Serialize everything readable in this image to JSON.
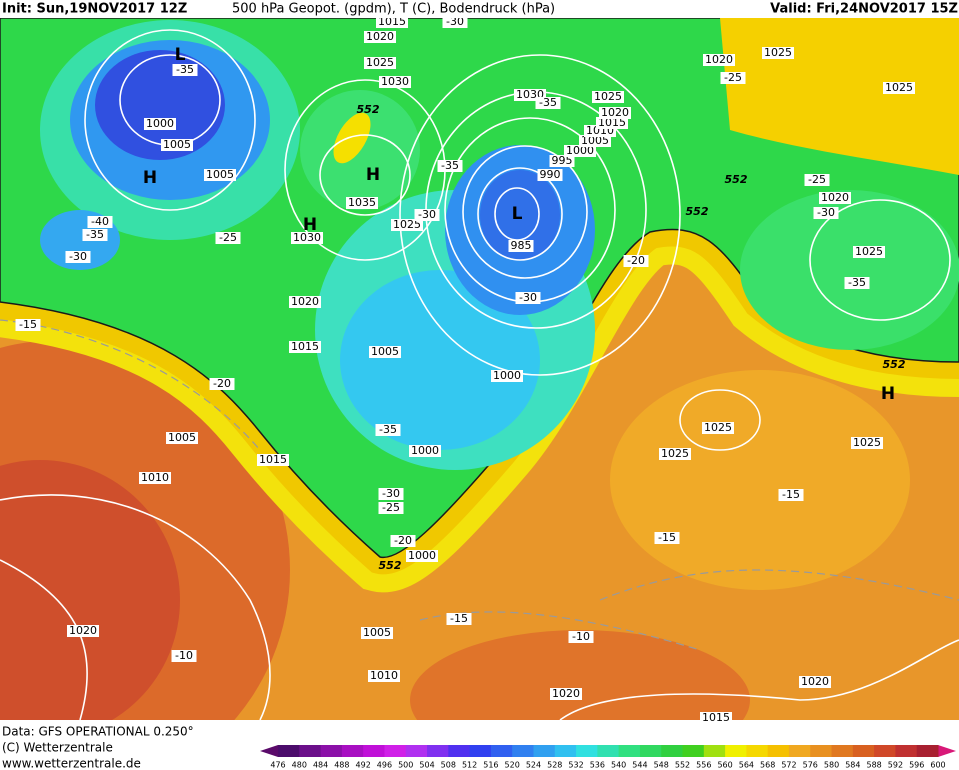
{
  "header": {
    "init": "Init: Sun,19NOV2017 12Z",
    "title": "500 hPa Geopot. (gpdm), T (C), Bodendruck (hPa)",
    "valid": "Valid: Fri,24NOV2017 15Z"
  },
  "footer": {
    "data": "Data: GFS OPERATIONAL 0.250°",
    "copyright": "(C) Wetterzentrale",
    "url": "www.wetterzentrale.de"
  },
  "colorbar": {
    "levels": [
      476,
      480,
      484,
      488,
      492,
      496,
      500,
      504,
      508,
      512,
      516,
      520,
      524,
      528,
      532,
      536,
      540,
      544,
      548,
      552,
      556,
      560,
      564,
      568,
      572,
      576,
      580,
      584,
      588,
      592,
      596,
      600
    ],
    "colors": [
      "#4b0c6b",
      "#6b0f8a",
      "#8b10a8",
      "#a80fc2",
      "#c010d8",
      "#d020e8",
      "#b030f0",
      "#8030f0",
      "#5030f0",
      "#3040f0",
      "#3060f0",
      "#3080f0",
      "#30a0f0",
      "#30c0f0",
      "#30e0e0",
      "#30e0b0",
      "#30e080",
      "#30d860",
      "#30d040",
      "#40d020",
      "#a0e010",
      "#f0f000",
      "#f5d800",
      "#f5c000",
      "#f0a820",
      "#e89020",
      "#e07820",
      "#d86020",
      "#d04828",
      "#c03030",
      "#a82030"
    ]
  },
  "map_labels": [
    "1015",
    "-30",
    "1020",
    "1025",
    "1030",
    "-35",
    "1000",
    "1005",
    "1005",
    "552",
    "1035",
    "1030",
    "1025",
    "-35",
    "-30",
    "-40",
    "-35",
    "-30",
    "-25",
    "1020",
    "1015",
    "1005",
    "1000",
    "985",
    "990",
    "995",
    "1000",
    "1005",
    "1010",
    "1015",
    "1020",
    "1025",
    "1030",
    "-35",
    "-30",
    "-20",
    "552",
    "552",
    "1020",
    "-25",
    "1025",
    "1025",
    "-25",
    "1020",
    "-30",
    "1025",
    "-35",
    "552",
    "1025",
    "-15",
    "-20",
    "1005",
    "1010",
    "1015",
    "-35",
    "1000",
    "-30",
    "-25",
    "-20",
    "552",
    "1000",
    "1025",
    "1025",
    "-15",
    "-15",
    "-15",
    "1005",
    "1010",
    "-10",
    "1020",
    "-10",
    "1020",
    "1020",
    "1015"
  ],
  "centers": [
    "L",
    "H",
    "H",
    "H",
    "L",
    "H"
  ]
}
